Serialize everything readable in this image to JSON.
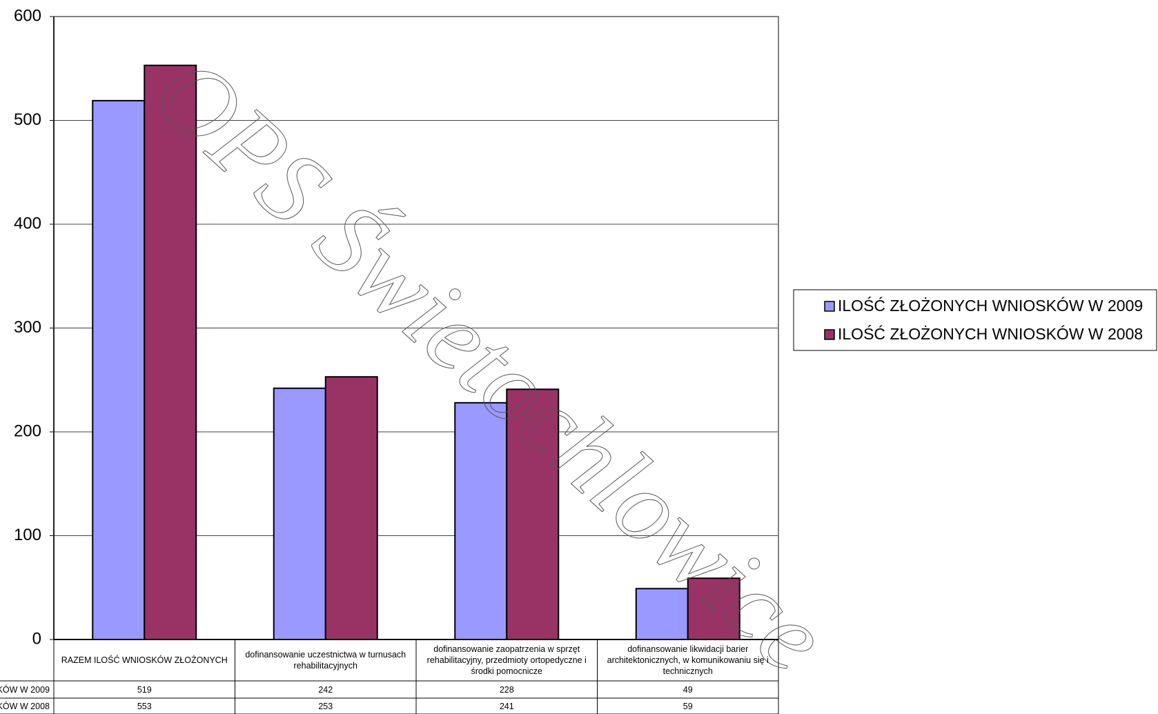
{
  "chart_data": {
    "type": "bar",
    "categories": [
      "RAZEM ILOŚĆ WNIOSKÓW ZŁOŻONYCH",
      "dofinansowanie uczestnictwa w turnusach rehabilitacyjnych",
      "dofinansowanie zaopatrzenia w sprzęt rehabilitacyjny, przedmioty ortopedyczne i środki pomocnicze",
      "dofinansowanie likwidacji barier architektonicznych, w komunikowaniu się i technicznych"
    ],
    "series": [
      {
        "name": "ILOŚĆ ZŁOŻONYCH WNIOSKÓW  W 2009",
        "color": "#9999ff",
        "values": [
          519,
          242,
          228,
          49
        ]
      },
      {
        "name": "ILOŚĆ ZŁOŻONYCH WNIOSKÓW  W 2008",
        "color": "#993366",
        "values": [
          553,
          253,
          241,
          59
        ]
      }
    ],
    "ylim": [
      0,
      600
    ],
    "yticks": [
      0,
      100,
      200,
      300,
      400,
      500,
      600
    ],
    "grid": true,
    "legend": "right",
    "watermark": "OPS Świetochlowice"
  }
}
